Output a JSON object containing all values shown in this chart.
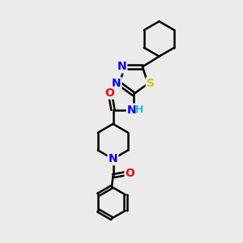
{
  "background_color": "#ebebeb",
  "atom_colors": {
    "C": "#000000",
    "N": "#0000ff",
    "O": "#ff0000",
    "S": "#cccc00",
    "H": "#00cccc"
  },
  "bond_width": 1.8,
  "font_size": 10,
  "figsize": [
    3.0,
    3.0
  ]
}
